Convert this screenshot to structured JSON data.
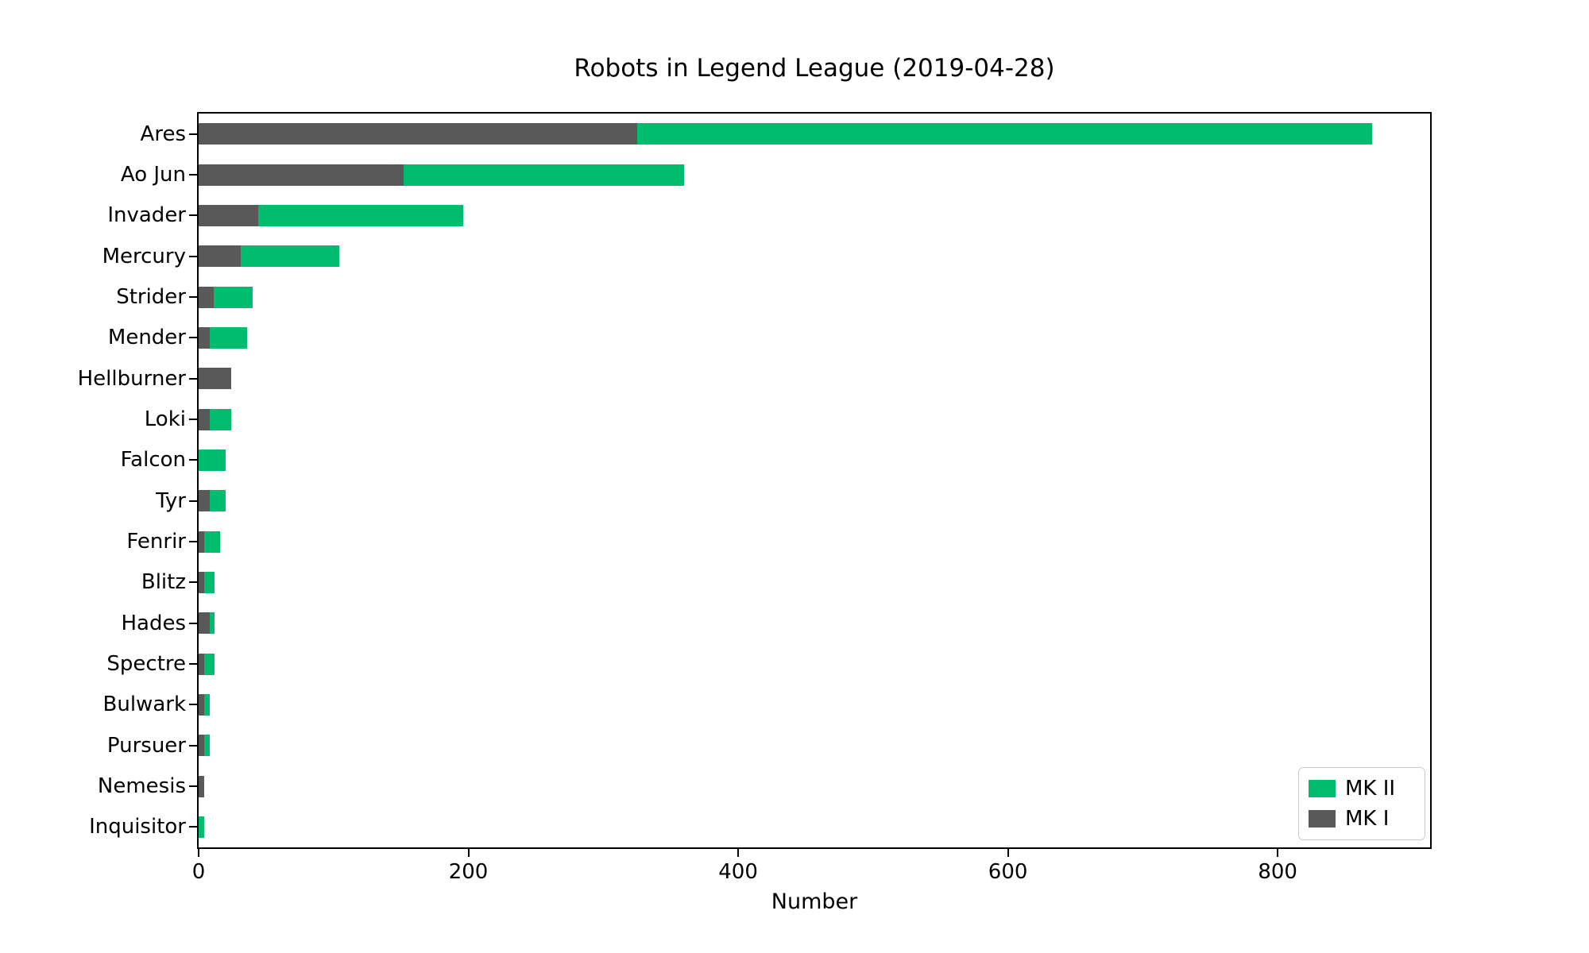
{
  "title": "Robots in Legend League (2019-04-28)",
  "chart_data": {
    "type": "bar",
    "orientation": "horizontal",
    "stacked": true,
    "title": "Robots in Legend League (2019-04-28)",
    "xlabel": "Number",
    "ylabel": "",
    "categories": [
      "Ares",
      "Ao Jun",
      "Invader",
      "Mercury",
      "Strider",
      "Mender",
      "Hellburner",
      "Loki",
      "Falcon",
      "Tyr",
      "Fenrir",
      "Blitz",
      "Hades",
      "Spectre",
      "Bulwark",
      "Pursuer",
      "Nemesis",
      "Inquisitor"
    ],
    "series": [
      {
        "name": "MK I",
        "color": "#595959",
        "values": [
          325,
          152,
          44,
          31,
          11,
          8,
          24,
          8,
          0,
          8,
          4,
          4,
          8,
          4,
          4,
          4,
          4,
          0
        ]
      },
      {
        "name": "MK II",
        "color": "#00bc6e",
        "values": [
          545,
          208,
          152,
          73,
          29,
          28,
          0,
          16,
          20,
          12,
          12,
          8,
          4,
          8,
          4,
          4,
          0,
          4
        ]
      }
    ],
    "totals": [
      870,
      360,
      196,
      104,
      40,
      36,
      24,
      24,
      20,
      20,
      16,
      12,
      12,
      12,
      8,
      8,
      4,
      4
    ],
    "xticks": [
      0,
      200,
      400,
      600,
      800
    ],
    "xlim": [
      0,
      913
    ],
    "grid": false,
    "legend": {
      "position": "lower right",
      "entries": [
        {
          "label": "MK II",
          "color": "#00bc6e"
        },
        {
          "label": "MK I",
          "color": "#595959"
        }
      ]
    },
    "colors": {
      "bar_mk1": "#595959",
      "bar_mk2": "#00bc6e",
      "axes": "#000000",
      "background": "#ffffff",
      "legend_border": "#cccccc"
    }
  }
}
